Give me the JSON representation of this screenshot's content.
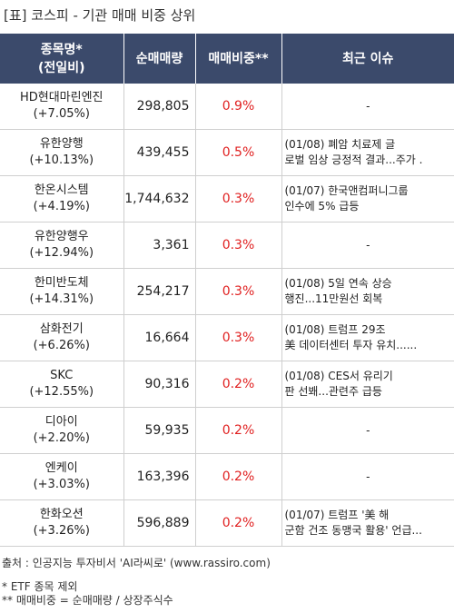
{
  "title": "[표] 코스피 - 기관 매매 비중 상위",
  "headers": {
    "name_line1": "종목명*",
    "name_line2": "(전일비)",
    "volume": "순매매량",
    "ratio": "매매비중**",
    "issue": "최근 이슈"
  },
  "colors": {
    "header_bg": "#3b4a6b",
    "ratio_text": "#e02020"
  },
  "rows": [
    {
      "name": "HD현대마린엔진",
      "change": "(+7.05%)",
      "volume": "298,805",
      "ratio": "0.9%",
      "issue1": "-",
      "issue2": ""
    },
    {
      "name": "유한양행",
      "change": "(+10.13%)",
      "volume": "439,455",
      "ratio": "0.5%",
      "issue1": "(01/08) 폐암 치료제 글",
      "issue2": "로벌 임상 긍정적 결과...주가 ."
    },
    {
      "name": "한온시스템",
      "change": "(+4.19%)",
      "volume": "1,744,632",
      "ratio": "0.3%",
      "issue1": "(01/07) 한국앤컴퍼니그룹",
      "issue2": " 인수에 5% 급등"
    },
    {
      "name": "유한양행우",
      "change": "(+12.94%)",
      "volume": "3,361",
      "ratio": "0.3%",
      "issue1": "-",
      "issue2": ""
    },
    {
      "name": "한미반도체",
      "change": "(+14.31%)",
      "volume": "254,217",
      "ratio": "0.3%",
      "issue1": "(01/08) 5일 연속 상승",
      "issue2": " 행진...11만원선 회복"
    },
    {
      "name": "삼화전기",
      "change": "(+6.26%)",
      "volume": "16,664",
      "ratio": "0.3%",
      "issue1": "(01/08) 트럼프 29조",
      "issue2": "美 데이터센터 투자 유치......"
    },
    {
      "name": "SKC",
      "change": "(+12.55%)",
      "volume": "90,316",
      "ratio": "0.2%",
      "issue1": "(01/08) CES서 유리기",
      "issue2": "판 선봬...관련주 급등"
    },
    {
      "name": "디아이",
      "change": "(+2.20%)",
      "volume": "59,935",
      "ratio": "0.2%",
      "issue1": "-",
      "issue2": ""
    },
    {
      "name": "엔케이",
      "change": "(+3.03%)",
      "volume": "163,396",
      "ratio": "0.2%",
      "issue1": "-",
      "issue2": ""
    },
    {
      "name": "한화오션",
      "change": "(+3.26%)",
      "volume": "596,889",
      "ratio": "0.2%",
      "issue1": "(01/07) 트럼프 '美 해",
      "issue2": "군함 건조 동맹국 활용' 언급..."
    }
  ],
  "footer": {
    "source": "출처 : 인공지능 투자비서 'AI라씨로' (www.rassiro.com)",
    "note1": "* ETF 종목 제외",
    "note2": "** 매매비중 = 순매매량 / 상장주식수"
  }
}
